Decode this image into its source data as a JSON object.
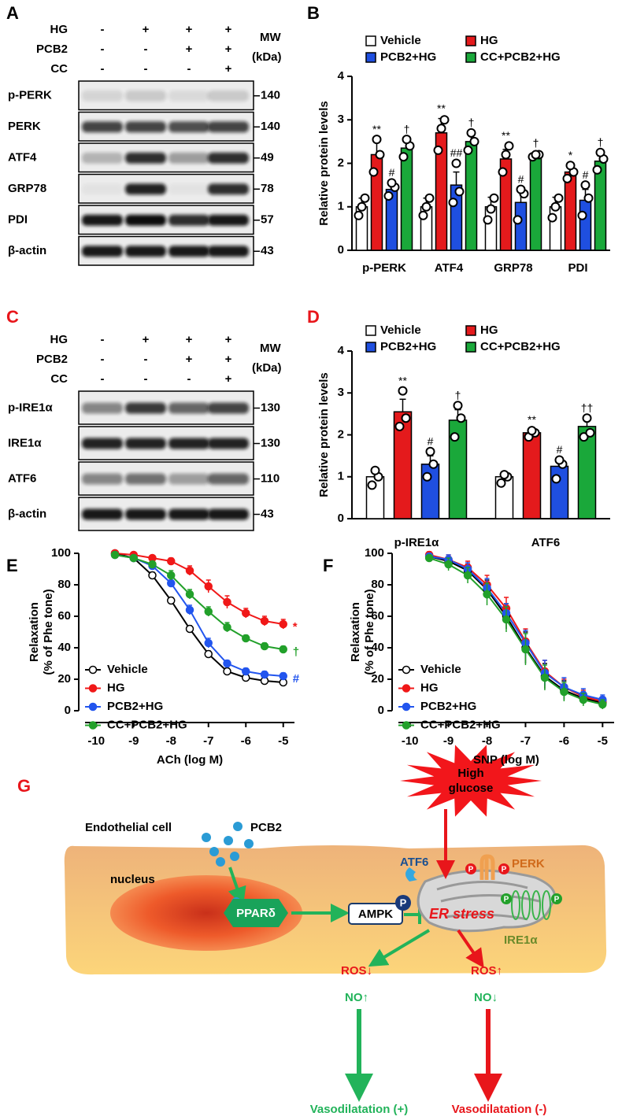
{
  "blots": [
    {
      "panel": "A",
      "conditions": [
        {
          "name": "HG",
          "signs": [
            "-",
            "+",
            "+",
            "+"
          ]
        },
        {
          "name": "PCB2",
          "signs": [
            "-",
            "-",
            "+",
            "+"
          ]
        },
        {
          "name": "CC",
          "signs": [
            "-",
            "-",
            "-",
            "+"
          ]
        }
      ],
      "mw_title": "MW",
      "mw_unit": "(kDa)",
      "rows": [
        {
          "name": "p-PERK",
          "mw": 140
        },
        {
          "name": "PERK",
          "mw": 140
        },
        {
          "name": "ATF4",
          "mw": 49
        },
        {
          "name": "GRP78",
          "mw": 78
        },
        {
          "name": "PDI",
          "mw": 57
        },
        {
          "name": "β-actin",
          "mw": 43
        }
      ]
    },
    {
      "panel": "C",
      "conditions": [
        {
          "name": "HG",
          "signs": [
            "-",
            "+",
            "+",
            "+"
          ]
        },
        {
          "name": "PCB2",
          "signs": [
            "-",
            "-",
            "+",
            "+"
          ]
        },
        {
          "name": "CC",
          "signs": [
            "-",
            "-",
            "-",
            "+"
          ]
        }
      ],
      "mw_title": "MW",
      "mw_unit": "(kDa)",
      "rows": [
        {
          "name": "p-IRE1α",
          "mw": 130
        },
        {
          "name": "IRE1α",
          "mw": 130
        },
        {
          "name": "ATF6",
          "mw": 110
        },
        {
          "name": "β-actin",
          "mw": 43
        }
      ]
    }
  ],
  "chart_data": [
    {
      "panel": "B",
      "type": "bar",
      "ylabel": "Relative protein levels",
      "legend": "top",
      "categories": [
        "p-PERK",
        "ATF4",
        "GRP78",
        "PDI"
      ],
      "series": [
        {
          "name": "Vehicle",
          "color": "#ffffff",
          "values": [
            1.0,
            1.0,
            1.0,
            1.0
          ],
          "errors": [
            0.2,
            0.2,
            0.22,
            0.22
          ],
          "points": [
            [
              0.8,
              1.2,
              1.0
            ],
            [
              0.8,
              1.2,
              1.0
            ],
            [
              0.7,
              1.2,
              0.95
            ],
            [
              0.75,
              1.2,
              1.0
            ]
          ]
        },
        {
          "name": "HG",
          "color": "#e41a1c",
          "values": [
            2.2,
            2.7,
            2.1,
            1.8
          ],
          "errors": [
            0.28,
            0.33,
            0.22,
            0.1
          ],
          "points": [
            [
              1.8,
              2.2,
              2.55
            ],
            [
              2.3,
              3.0,
              2.8
            ],
            [
              1.8,
              2.4,
              2.2
            ],
            [
              1.65,
              1.8,
              1.95
            ]
          ],
          "significance": [
            "**",
            "**",
            "**",
            "*"
          ]
        },
        {
          "name": "PCB2+HG",
          "color": "#1f4fe0",
          "values": [
            1.4,
            1.5,
            1.1,
            1.15
          ],
          "errors": [
            0.12,
            0.3,
            0.28,
            0.25
          ],
          "points": [
            [
              1.25,
              1.45,
              1.55
            ],
            [
              1.1,
              1.35,
              2.0
            ],
            [
              0.7,
              1.3,
              1.4
            ],
            [
              0.8,
              1.2,
              1.5
            ]
          ],
          "significance": [
            "#",
            "##",
            "#",
            "#"
          ]
        },
        {
          "name": "CC+PCB2+HG",
          "color": "#1aa83a",
          "values": [
            2.35,
            2.5,
            2.2,
            2.05
          ],
          "errors": [
            0.15,
            0.15,
            0.03,
            0.12
          ],
          "points": [
            [
              2.15,
              2.4,
              2.55
            ],
            [
              2.3,
              2.5,
              2.7
            ],
            [
              2.15,
              2.2,
              2.2
            ],
            [
              1.85,
              2.1,
              2.25
            ]
          ],
          "significance": [
            "†",
            "†",
            "†",
            "†"
          ]
        }
      ],
      "ylim": [
        0,
        4
      ],
      "yticks": [
        0,
        1,
        2,
        3,
        4
      ]
    },
    {
      "panel": "D",
      "type": "bar",
      "ylabel": "Relative protein levels",
      "legend": "top",
      "categories": [
        "p-IRE1α",
        "ATF6"
      ],
      "series": [
        {
          "name": "Vehicle",
          "color": "#ffffff",
          "values": [
            1.0,
            1.0
          ],
          "errors": [
            0.1,
            0.08
          ],
          "points": [
            [
              0.8,
              1.0,
              1.15
            ],
            [
              0.85,
              1.0,
              1.05
            ]
          ]
        },
        {
          "name": "HG",
          "color": "#e41a1c",
          "values": [
            2.55,
            2.05
          ],
          "errors": [
            0.3,
            0.07
          ],
          "points": [
            [
              2.2,
              2.4,
              3.05
            ],
            [
              1.95,
              2.05,
              2.1
            ]
          ],
          "significance": [
            "**",
            "**"
          ]
        },
        {
          "name": "PCB2+HG",
          "color": "#1f4fe0",
          "values": [
            1.3,
            1.25
          ],
          "errors": [
            0.2,
            0.15
          ],
          "points": [
            [
              1.0,
              1.3,
              1.6
            ],
            [
              0.95,
              1.3,
              1.4
            ]
          ],
          "significance": [
            "#",
            "#"
          ]
        },
        {
          "name": "CC+PCB2+HG",
          "color": "#1aa83a",
          "values": [
            2.35,
            2.2
          ],
          "errors": [
            0.25,
            0.2
          ],
          "points": [
            [
              1.95,
              2.4,
              2.7
            ],
            [
              1.95,
              2.05,
              2.4
            ]
          ],
          "significance": [
            "†",
            "††"
          ]
        }
      ],
      "ylim": [
        0,
        4
      ],
      "yticks": [
        0,
        1,
        2,
        3,
        4
      ]
    },
    {
      "panel": "E",
      "type": "line",
      "xlabel": "ACh (log M)",
      "ylabel": [
        "Relaxation",
        "(% of Phe tone)"
      ],
      "legend": "lower left",
      "x": [
        -9.5,
        -9,
        -8.5,
        -8,
        -7.5,
        -7,
        -6.5,
        -6,
        -5.5,
        -5
      ],
      "series": [
        {
          "name": "Vehicle",
          "color": "#000000",
          "marker_fill": "#ffffff",
          "values": [
            100,
            97,
            86,
            70,
            52,
            36,
            25,
            21,
            19,
            18
          ],
          "errors": [
            1,
            1,
            2,
            2,
            2,
            2,
            2,
            2,
            1,
            1
          ]
        },
        {
          "name": "HG",
          "color": "#f01818",
          "values": [
            100,
            99,
            97,
            95,
            89,
            79,
            69,
            62,
            57,
            55
          ],
          "errors": [
            1,
            1,
            1,
            2,
            3,
            4,
            4,
            3,
            3,
            3
          ],
          "end_label": "*"
        },
        {
          "name": "PCB2+HG",
          "color": "#2255ee",
          "values": [
            99,
            97,
            92,
            81,
            64,
            43,
            30,
            25,
            23,
            22
          ],
          "errors": [
            1,
            1,
            2,
            2,
            3,
            3,
            2,
            2,
            2,
            2
          ],
          "end_label": "#"
        },
        {
          "name": "CC+PCB2+HG",
          "color": "#22a02a",
          "values": [
            99,
            97,
            93,
            86,
            74,
            63,
            53,
            46,
            41,
            39
          ],
          "errors": [
            1,
            1,
            2,
            3,
            3,
            3,
            3,
            2,
            2,
            2
          ],
          "end_label": "†"
        }
      ],
      "xlim": [
        -10.3,
        -4.7
      ],
      "xticks": [
        -10,
        -9,
        -8,
        -7,
        -6,
        -5
      ],
      "ylim": [
        0,
        100
      ],
      "yticks": [
        0,
        20,
        40,
        60,
        80,
        100
      ]
    },
    {
      "panel": "F",
      "type": "line",
      "xlabel": "SNP (log M)",
      "ylabel": [
        "Relaxation",
        "(% of Phe tone)"
      ],
      "legend": "lower left",
      "x": [
        -9.5,
        -9,
        -8.5,
        -8,
        -7.5,
        -7,
        -6.5,
        -6,
        -5.5,
        -5
      ],
      "series": [
        {
          "name": "Vehicle",
          "color": "#000000",
          "marker_fill": "#ffffff",
          "values": [
            98,
            95,
            89,
            77,
            60,
            40,
            22,
            13,
            8,
            5
          ],
          "errors": [
            2,
            3,
            4,
            6,
            8,
            10,
            8,
            6,
            4,
            3
          ]
        },
        {
          "name": "HG",
          "color": "#f01818",
          "values": [
            99,
            96,
            91,
            80,
            65,
            44,
            25,
            15,
            9,
            6
          ],
          "errors": [
            2,
            3,
            4,
            6,
            7,
            8,
            7,
            5,
            4,
            3
          ]
        },
        {
          "name": "PCB2+HG",
          "color": "#2255ee",
          "values": [
            98,
            96,
            90,
            78,
            62,
            43,
            24,
            15,
            10,
            7
          ],
          "errors": [
            2,
            3,
            4,
            6,
            6,
            8,
            8,
            6,
            4,
            3
          ]
        },
        {
          "name": "CC+PCB2+HG",
          "color": "#22a02a",
          "values": [
            97,
            93,
            86,
            74,
            58,
            39,
            21,
            12,
            7,
            4
          ],
          "errors": [
            2,
            4,
            5,
            7,
            8,
            10,
            8,
            6,
            4,
            3
          ]
        }
      ],
      "xlim": [
        -10.3,
        -4.7
      ],
      "xticks": [
        -10,
        -9,
        -8,
        -7,
        -6,
        -5
      ],
      "ylim": [
        0,
        100
      ],
      "yticks": [
        0,
        20,
        40,
        60,
        80,
        100
      ]
    }
  ],
  "diagram": {
    "panel": "G",
    "stimulus": [
      "High",
      "glucose"
    ],
    "cell": "Endothelial cell",
    "compound": "PCB2",
    "nucleus": "nucleus",
    "receptor": "PPARδ",
    "kinase": "AMPK",
    "phospho": "P",
    "stress": "ER stress",
    "sensors": [
      "ATF6",
      "PERK",
      "IRE1α"
    ],
    "ros_down": "ROS↓",
    "ros_up": "ROS↑",
    "no_up": "NO↑",
    "no_down": "NO↓",
    "outcomes": [
      "Vasodilatation (+)",
      "Vasodilatation (-)"
    ]
  }
}
